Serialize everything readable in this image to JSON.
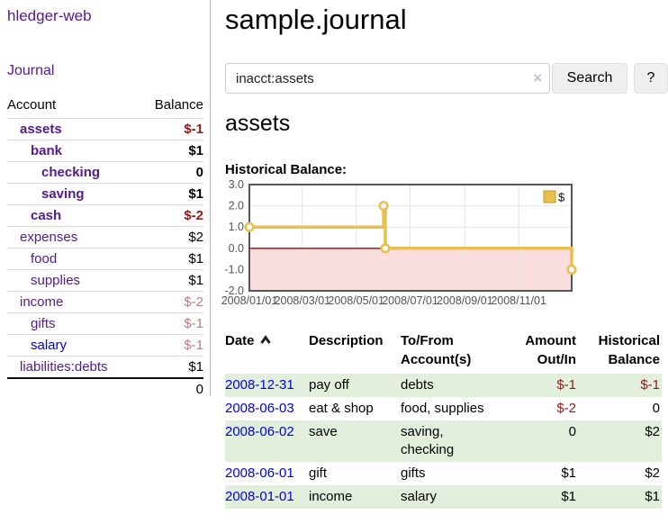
{
  "brand": "hledger-web",
  "nav": {
    "journal": "Journal"
  },
  "page": {
    "title": "sample.journal"
  },
  "search": {
    "value": "inacct:assets",
    "clear": "×",
    "button_label": "Search",
    "help_label": "?"
  },
  "account_page": {
    "title": "assets",
    "chart_heading": "Historical Balance:"
  },
  "sidebar_table": {
    "col_account": "Account",
    "col_balance": "Balance",
    "accounts": [
      {
        "name": "assets",
        "depth": 1,
        "bold": true,
        "balance": "$-1",
        "tone": "neg"
      },
      {
        "name": "bank",
        "depth": 2,
        "bold": true,
        "balance": "$1",
        "tone": "pos"
      },
      {
        "name": "checking",
        "depth": 3,
        "bold": true,
        "balance": "0",
        "tone": "pos"
      },
      {
        "name": "saving",
        "depth": 3,
        "bold": true,
        "balance": "$1",
        "tone": "pos"
      },
      {
        "name": "cash",
        "depth": 2,
        "bold": true,
        "balance": "$-2",
        "tone": "neg"
      },
      {
        "name": "expenses",
        "depth": 1,
        "bold": false,
        "balance": "$2",
        "tone": "pos"
      },
      {
        "name": "food",
        "depth": 2,
        "bold": false,
        "balance": "$1",
        "tone": "pos"
      },
      {
        "name": "supplies",
        "depth": 2,
        "bold": false,
        "balance": "$1",
        "tone": "pos"
      },
      {
        "name": "income",
        "depth": 1,
        "bold": false,
        "balance": "$-2",
        "tone": "neg-faded"
      },
      {
        "name": "gifts",
        "depth": 2,
        "bold": false,
        "balance": "$-1",
        "tone": "neg-faded"
      },
      {
        "name": "salary",
        "depth": 2,
        "bold": false,
        "balance": "$-1",
        "tone": "neg-faded",
        "link_color": "blue"
      },
      {
        "name": "liabilities:debts",
        "depth": 1,
        "bold": false,
        "balance": "$1",
        "tone": "pos"
      }
    ],
    "total": "0"
  },
  "register": {
    "headers": {
      "date": "Date",
      "description": "Description",
      "tofrom_line1": "To/From",
      "tofrom_line2": "Account(s)",
      "amount_line1": "Amount",
      "amount_line2": "Out/In",
      "balance_line1": "Historical",
      "balance_line2": "Balance",
      "sort_icon": "chevron-up"
    },
    "rows": [
      {
        "date": "2008-12-31",
        "description": "pay off",
        "accounts": "debts",
        "amount": "$-1",
        "amount_tone": "neg",
        "balance": "$-1",
        "balance_tone": "neg"
      },
      {
        "date": "2008-06-03",
        "description": "eat & shop",
        "accounts": "food, supplies",
        "amount": "$-2",
        "amount_tone": "neg",
        "balance": "0",
        "balance_tone": "pos"
      },
      {
        "date": "2008-06-02",
        "description": "save",
        "accounts": "saving,\nchecking",
        "amount": "0",
        "amount_tone": "pos",
        "balance": "$2",
        "balance_tone": "pos"
      },
      {
        "date": "2008-06-01",
        "description": "gift",
        "accounts": "gifts",
        "amount": "$1",
        "amount_tone": "pos",
        "balance": "$2",
        "balance_tone": "pos"
      },
      {
        "date": "2008-01-01",
        "description": "income",
        "accounts": "salary",
        "amount": "$1",
        "amount_tone": "pos",
        "balance": "$1",
        "balance_tone": "pos"
      }
    ]
  },
  "chart_data": {
    "type": "line",
    "step": true,
    "title": "",
    "xlabel": "",
    "ylabel": "",
    "series": [
      {
        "name": "$",
        "color": "#e9bf4f",
        "points": [
          [
            "2008-01-01",
            1
          ],
          [
            "2008-06-01",
            2
          ],
          [
            "2008-06-03",
            0
          ],
          [
            "2008-12-31",
            -1
          ]
        ]
      }
    ],
    "x_range": [
      "2008-01-01",
      "2008-12-31"
    ],
    "ylim": [
      -2,
      3
    ],
    "yticks": [
      "3.0",
      "2.0",
      "1.0",
      "0.0",
      "-1.0",
      "-2.0"
    ],
    "xticks": [
      "2008/01/01",
      "2008/03/01",
      "2008/05/01",
      "2008/07/01",
      "2008/09/01",
      "2008/11/01"
    ],
    "grid": true,
    "legend": {
      "position": "top-right",
      "label": "$",
      "swatch": "#e9c04d"
    },
    "negative_region": "#fbdede",
    "zero_line": "#a40000",
    "border": "#555555",
    "tick_label_color": "#545454"
  },
  "colors": {
    "link_purple": "#551a8b",
    "link_blue": "#0000dd",
    "negative": "#8b1c1c",
    "negative_faded": "#b67e7e",
    "row_stripe_green": "#e3efdd"
  }
}
